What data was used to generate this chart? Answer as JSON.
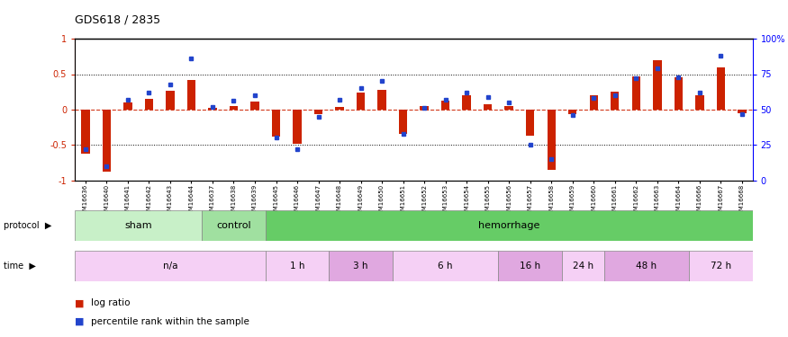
{
  "title": "GDS618 / 2835",
  "samples": [
    "GSM16636",
    "GSM16640",
    "GSM16641",
    "GSM16642",
    "GSM16643",
    "GSM16644",
    "GSM16637",
    "GSM16638",
    "GSM16639",
    "GSM16645",
    "GSM16646",
    "GSM16647",
    "GSM16648",
    "GSM16649",
    "GSM16650",
    "GSM16651",
    "GSM16652",
    "GSM16653",
    "GSM16654",
    "GSM16655",
    "GSM16656",
    "GSM16657",
    "GSM16658",
    "GSM16659",
    "GSM16660",
    "GSM16661",
    "GSM16662",
    "GSM16663",
    "GSM16664",
    "GSM16666",
    "GSM16667",
    "GSM16668"
  ],
  "log_ratio": [
    -0.62,
    -0.88,
    0.1,
    0.15,
    0.27,
    0.42,
    0.02,
    0.05,
    0.11,
    -0.38,
    -0.48,
    -0.07,
    0.04,
    0.24,
    0.28,
    -0.35,
    0.05,
    0.12,
    0.2,
    0.08,
    0.05,
    -0.37,
    -0.85,
    -0.07,
    0.2,
    0.25,
    0.47,
    0.7,
    0.45,
    0.2,
    0.6,
    -0.05
  ],
  "percentile": [
    22,
    10,
    57,
    62,
    68,
    86,
    52,
    56,
    60,
    30,
    22,
    45,
    57,
    65,
    70,
    33,
    51,
    57,
    62,
    59,
    55,
    25,
    15,
    46,
    58,
    60,
    72,
    79,
    73,
    62,
    88,
    47
  ],
  "protocol_groups": [
    {
      "label": "sham",
      "start": 0,
      "end": 5,
      "color": "#c8f0c8"
    },
    {
      "label": "control",
      "start": 6,
      "end": 8,
      "color": "#a0e0a0"
    },
    {
      "label": "hemorrhage",
      "start": 9,
      "end": 31,
      "color": "#66cc66"
    }
  ],
  "time_groups": [
    {
      "label": "n/a",
      "start": 0,
      "end": 8,
      "color": "#f5d0f5"
    },
    {
      "label": "1 h",
      "start": 9,
      "end": 11,
      "color": "#f5d0f5"
    },
    {
      "label": "3 h",
      "start": 12,
      "end": 14,
      "color": "#e0a8e0"
    },
    {
      "label": "6 h",
      "start": 15,
      "end": 19,
      "color": "#f5d0f5"
    },
    {
      "label": "16 h",
      "start": 20,
      "end": 22,
      "color": "#e0a8e0"
    },
    {
      "label": "24 h",
      "start": 23,
      "end": 24,
      "color": "#f5d0f5"
    },
    {
      "label": "48 h",
      "start": 25,
      "end": 28,
      "color": "#e0a8e0"
    },
    {
      "label": "72 h",
      "start": 29,
      "end": 31,
      "color": "#f5d0f5"
    }
  ],
  "bar_color": "#cc2200",
  "dot_color": "#2244cc",
  "ylim_left": [
    -1,
    1
  ],
  "ylim_right": [
    0,
    100
  ],
  "background_color": "#ffffff"
}
